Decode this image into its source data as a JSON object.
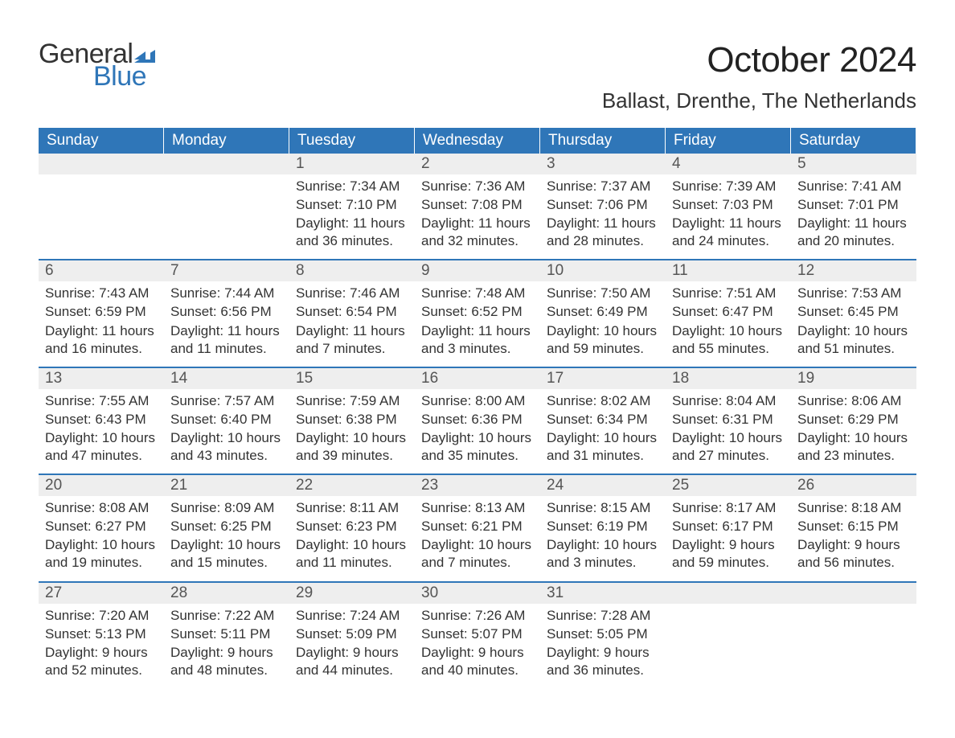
{
  "logo": {
    "text_general": "General",
    "text_blue": "Blue",
    "flag_color": "#2f76b8"
  },
  "title": "October 2024",
  "location": "Ballast, Drenthe, The Netherlands",
  "colors": {
    "header_bg": "#2f76b8",
    "header_text": "#ffffff",
    "daynum_bg": "#eeeeee",
    "daynum_text": "#555555",
    "border": "#2f76b8",
    "body_text": "#333333",
    "page_bg": "#ffffff"
  },
  "typography": {
    "title_fontsize": 44,
    "location_fontsize": 26,
    "header_fontsize": 19,
    "daynum_fontsize": 19,
    "cell_fontsize": 17,
    "logo_fontsize": 34
  },
  "layout": {
    "columns": 7,
    "rows": 5,
    "cell_min_height": 130
  },
  "day_headers": [
    "Sunday",
    "Monday",
    "Tuesday",
    "Wednesday",
    "Thursday",
    "Friday",
    "Saturday"
  ],
  "labels": {
    "sunrise": "Sunrise: ",
    "sunset": "Sunset: ",
    "daylight": "Daylight: "
  },
  "weeks": [
    [
      {
        "day": "",
        "empty": true
      },
      {
        "day": "",
        "empty": true
      },
      {
        "day": "1",
        "sunrise": "7:34 AM",
        "sunset": "7:10 PM",
        "daylight": "11 hours and 36 minutes."
      },
      {
        "day": "2",
        "sunrise": "7:36 AM",
        "sunset": "7:08 PM",
        "daylight": "11 hours and 32 minutes."
      },
      {
        "day": "3",
        "sunrise": "7:37 AM",
        "sunset": "7:06 PM",
        "daylight": "11 hours and 28 minutes."
      },
      {
        "day": "4",
        "sunrise": "7:39 AM",
        "sunset": "7:03 PM",
        "daylight": "11 hours and 24 minutes."
      },
      {
        "day": "5",
        "sunrise": "7:41 AM",
        "sunset": "7:01 PM",
        "daylight": "11 hours and 20 minutes."
      }
    ],
    [
      {
        "day": "6",
        "sunrise": "7:43 AM",
        "sunset": "6:59 PM",
        "daylight": "11 hours and 16 minutes."
      },
      {
        "day": "7",
        "sunrise": "7:44 AM",
        "sunset": "6:56 PM",
        "daylight": "11 hours and 11 minutes."
      },
      {
        "day": "8",
        "sunrise": "7:46 AM",
        "sunset": "6:54 PM",
        "daylight": "11 hours and 7 minutes."
      },
      {
        "day": "9",
        "sunrise": "7:48 AM",
        "sunset": "6:52 PM",
        "daylight": "11 hours and 3 minutes."
      },
      {
        "day": "10",
        "sunrise": "7:50 AM",
        "sunset": "6:49 PM",
        "daylight": "10 hours and 59 minutes."
      },
      {
        "day": "11",
        "sunrise": "7:51 AM",
        "sunset": "6:47 PM",
        "daylight": "10 hours and 55 minutes."
      },
      {
        "day": "12",
        "sunrise": "7:53 AM",
        "sunset": "6:45 PM",
        "daylight": "10 hours and 51 minutes."
      }
    ],
    [
      {
        "day": "13",
        "sunrise": "7:55 AM",
        "sunset": "6:43 PM",
        "daylight": "10 hours and 47 minutes."
      },
      {
        "day": "14",
        "sunrise": "7:57 AM",
        "sunset": "6:40 PM",
        "daylight": "10 hours and 43 minutes."
      },
      {
        "day": "15",
        "sunrise": "7:59 AM",
        "sunset": "6:38 PM",
        "daylight": "10 hours and 39 minutes."
      },
      {
        "day": "16",
        "sunrise": "8:00 AM",
        "sunset": "6:36 PM",
        "daylight": "10 hours and 35 minutes."
      },
      {
        "day": "17",
        "sunrise": "8:02 AM",
        "sunset": "6:34 PM",
        "daylight": "10 hours and 31 minutes."
      },
      {
        "day": "18",
        "sunrise": "8:04 AM",
        "sunset": "6:31 PM",
        "daylight": "10 hours and 27 minutes."
      },
      {
        "day": "19",
        "sunrise": "8:06 AM",
        "sunset": "6:29 PM",
        "daylight": "10 hours and 23 minutes."
      }
    ],
    [
      {
        "day": "20",
        "sunrise": "8:08 AM",
        "sunset": "6:27 PM",
        "daylight": "10 hours and 19 minutes."
      },
      {
        "day": "21",
        "sunrise": "8:09 AM",
        "sunset": "6:25 PM",
        "daylight": "10 hours and 15 minutes."
      },
      {
        "day": "22",
        "sunrise": "8:11 AM",
        "sunset": "6:23 PM",
        "daylight": "10 hours and 11 minutes."
      },
      {
        "day": "23",
        "sunrise": "8:13 AM",
        "sunset": "6:21 PM",
        "daylight": "10 hours and 7 minutes."
      },
      {
        "day": "24",
        "sunrise": "8:15 AM",
        "sunset": "6:19 PM",
        "daylight": "10 hours and 3 minutes."
      },
      {
        "day": "25",
        "sunrise": "8:17 AM",
        "sunset": "6:17 PM",
        "daylight": "9 hours and 59 minutes."
      },
      {
        "day": "26",
        "sunrise": "8:18 AM",
        "sunset": "6:15 PM",
        "daylight": "9 hours and 56 minutes."
      }
    ],
    [
      {
        "day": "27",
        "sunrise": "7:20 AM",
        "sunset": "5:13 PM",
        "daylight": "9 hours and 52 minutes."
      },
      {
        "day": "28",
        "sunrise": "7:22 AM",
        "sunset": "5:11 PM",
        "daylight": "9 hours and 48 minutes."
      },
      {
        "day": "29",
        "sunrise": "7:24 AM",
        "sunset": "5:09 PM",
        "daylight": "9 hours and 44 minutes."
      },
      {
        "day": "30",
        "sunrise": "7:26 AM",
        "sunset": "5:07 PM",
        "daylight": "9 hours and 40 minutes."
      },
      {
        "day": "31",
        "sunrise": "7:28 AM",
        "sunset": "5:05 PM",
        "daylight": "9 hours and 36 minutes."
      },
      {
        "day": "",
        "empty": true
      },
      {
        "day": "",
        "empty": true
      }
    ]
  ]
}
